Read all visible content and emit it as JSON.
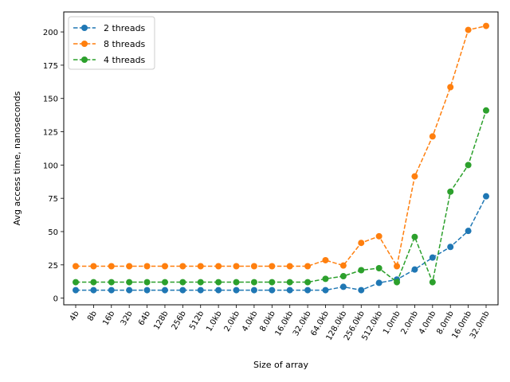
{
  "chart_data": {
    "type": "line",
    "title": "",
    "xlabel": "Size of array",
    "ylabel": "Avg access time, nanoseconds",
    "ylim": [
      -5,
      215
    ],
    "yticks": [
      0,
      25,
      50,
      75,
      100,
      125,
      150,
      175,
      200
    ],
    "grid": false,
    "legend_position": "top-left",
    "categories": [
      "4b",
      "8b",
      "16b",
      "32b",
      "64b",
      "128b",
      "256b",
      "512b",
      "1.0kb",
      "2.0kb",
      "4.0kb",
      "8.0kb",
      "16.0kb",
      "32.0kb",
      "64.0kb",
      "128.0kb",
      "256.0kb",
      "512.0kb",
      "1.0mb",
      "2.0mb",
      "4.0mb",
      "8.0mb",
      "16.0mb",
      "32.0mb"
    ],
    "series": [
      {
        "name": "2 threads",
        "color": "#1f77b4",
        "values": [
          6,
          6,
          6,
          6,
          6,
          6,
          6,
          6,
          6,
          6,
          6,
          6,
          6,
          6,
          6,
          8.5,
          6,
          11.5,
          14,
          21.5,
          30.5,
          38.5,
          50.5,
          76.5
        ]
      },
      {
        "name": "8 threads",
        "color": "#ff7f0e",
        "values": [
          24,
          24,
          24,
          24,
          24,
          24,
          24,
          24,
          24,
          24,
          24,
          24,
          24,
          24,
          28.5,
          24.5,
          41.5,
          46.5,
          24,
          91.5,
          121.5,
          158.5,
          201.5,
          204.5
        ]
      },
      {
        "name": "4 threads",
        "color": "#2ca02c",
        "values": [
          12,
          12,
          12,
          12,
          12,
          12,
          12,
          12,
          12,
          12,
          12,
          12,
          12,
          12,
          14.5,
          16.5,
          21,
          22.5,
          12,
          46,
          12,
          80,
          100,
          141
        ]
      }
    ]
  }
}
